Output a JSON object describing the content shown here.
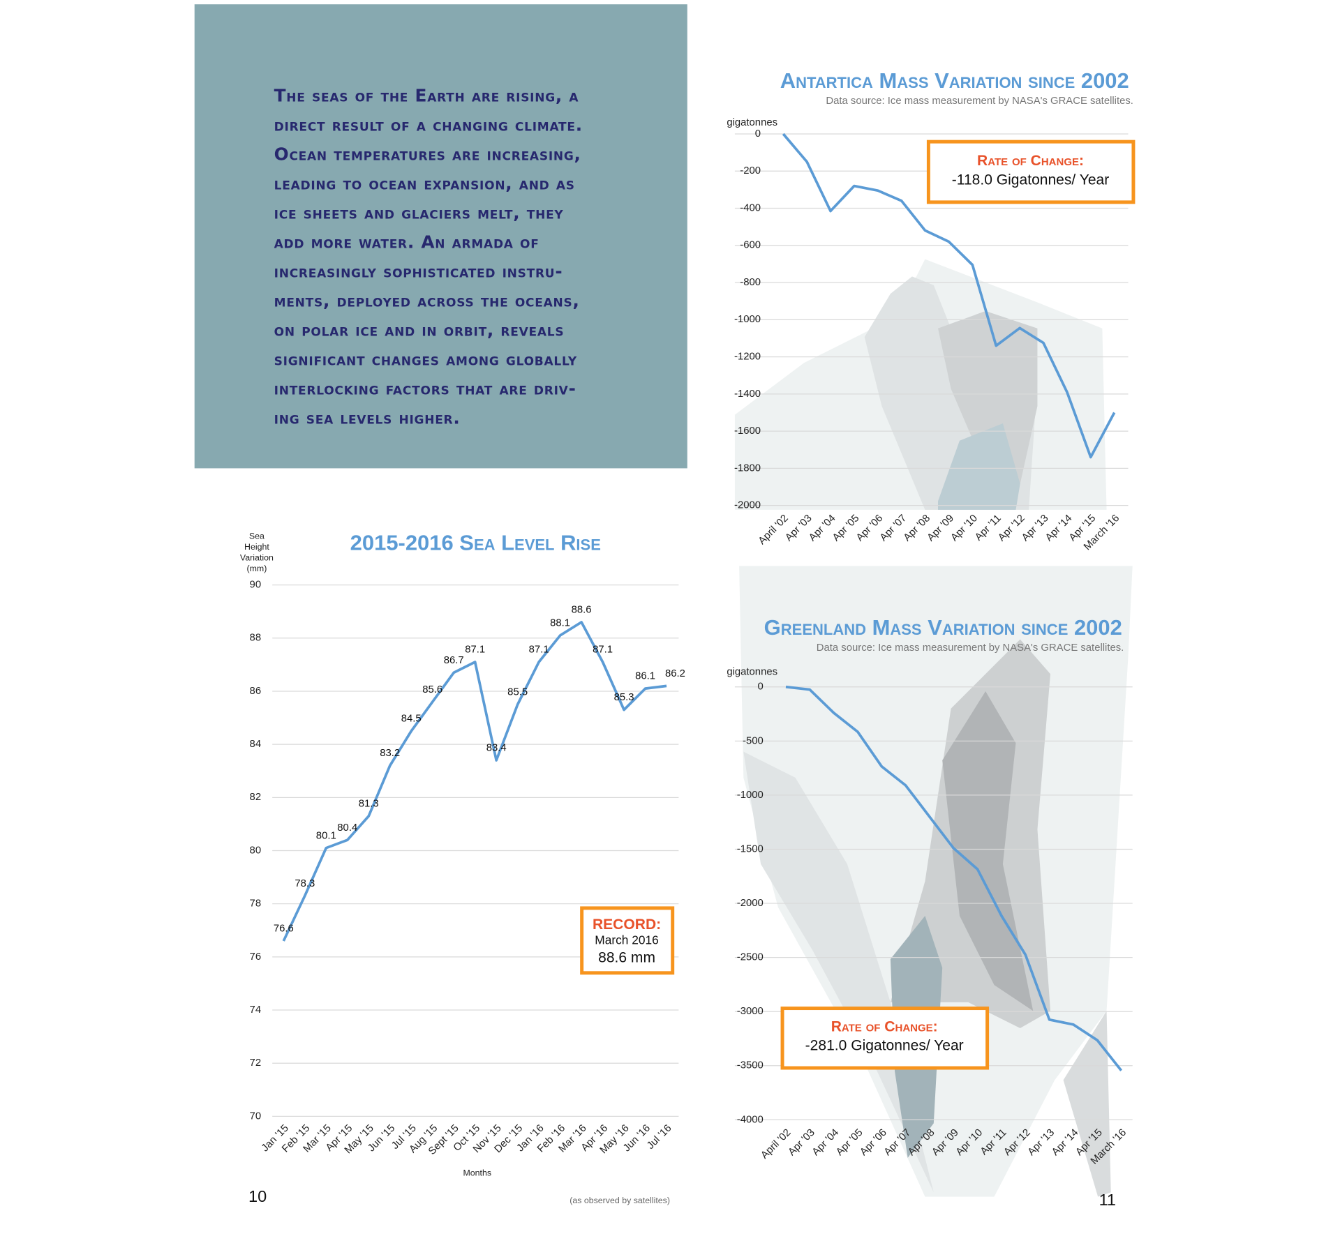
{
  "text_block": {
    "lines": [
      "The seas of the Earth are rising, a",
      "direct result of a changing climate.",
      "Ocean temperatures are increasing,",
      "leading to ocean expansion, and as",
      "ice sheets and glaciers melt, they",
      "add more water. An armada of",
      "increasingly sophisticated instru-",
      "ments, deployed across the oceans,",
      "on polar ice and in orbit, reveals",
      "significant changes among globally",
      "interlocking factors that are driv-",
      "ing sea levels higher."
    ]
  },
  "page_numbers": {
    "left": "10",
    "right": "11"
  },
  "footnote": "(as observed by satellites)",
  "chart_data": [
    {
      "type": "line",
      "title": "2015-2016 Sea Level Rise",
      "y_label": [
        "Sea",
        "Height",
        "Variation",
        "(mm)"
      ],
      "x_label": "Months",
      "categories": [
        "Jan '15",
        "Feb '15",
        "Mar '15",
        "Apr '15",
        "May '15",
        "Jun '15",
        "Jul '15",
        "Aug '15",
        "Sept '15",
        "Oct '15",
        "Nov '15",
        "Dec '15",
        "Jan '16",
        "Feb '16",
        "Mar '16",
        "Apr '16",
        "May '16",
        "Jun '16",
        "Jul '16"
      ],
      "values": [
        76.6,
        78.3,
        80.1,
        80.4,
        81.3,
        83.2,
        84.5,
        85.6,
        86.7,
        87.1,
        83.4,
        85.5,
        87.1,
        88.1,
        88.6,
        87.1,
        85.3,
        86.1,
        86.2
      ],
      "color": "#5b9bd5",
      "ylim": [
        70,
        90
      ],
      "yticks": [
        70,
        72,
        74,
        76,
        78,
        80,
        82,
        84,
        86,
        88,
        90
      ],
      "grid": true,
      "annotation": {
        "title": "RECORD:",
        "lines": [
          "March 2016",
          "88.6 mm"
        ]
      }
    },
    {
      "type": "line",
      "title": "Antartica Mass Variation since 2002",
      "subtitle": "Data source: Ice mass measurement by NASA's GRACE satellites.",
      "y_label": "gigatonnes",
      "categories": [
        "April '02",
        "Apr '03",
        "Apr '04",
        "Apr '05",
        "Apr '06",
        "Apr '07",
        "Apr '08",
        "Apr '09",
        "Apr '10",
        "Apr '11",
        "Apr '12",
        "Apr '13",
        "Apr '14",
        "Apr '15",
        "March '16"
      ],
      "values": [
        0,
        -150,
        -415,
        -280,
        -305,
        -360,
        -520,
        -580,
        -705,
        -1140,
        -1045,
        -1125,
        -1390,
        -1740,
        -1500
      ],
      "color": "#5b9bd5",
      "ylim": [
        -2000,
        0
      ],
      "yticks": [
        0,
        -200,
        -400,
        -600,
        -800,
        -1000,
        -1200,
        -1400,
        -1600,
        -1800,
        -2000
      ],
      "grid": true,
      "annotation": {
        "title": "Rate of Change:",
        "lines": [
          "-118.0 Gigatonnes/ Year"
        ]
      }
    },
    {
      "type": "line",
      "title": "Greenland Mass Variation since 2002",
      "subtitle": "Data source: Ice mass measurement by NASA's GRACE satellites.",
      "y_label": "gigatonnes",
      "categories": [
        "April '02",
        "Apr '03",
        "Apr '04",
        "Apr '05",
        "Apr '06",
        "Apr '07",
        "Apr '08",
        "Apr '09",
        "Apr '10",
        "Apr '11",
        "Apr '12",
        "Apr '13",
        "Apr '14",
        "Apr '15",
        "March '16"
      ],
      "values": [
        0,
        -25,
        -240,
        -415,
        -735,
        -910,
        -1200,
        -1490,
        -1685,
        -2115,
        -2475,
        -3075,
        -3120,
        -3265,
        -3545
      ],
      "color": "#5b9bd5",
      "ylim": [
        -4000,
        0
      ],
      "yticks": [
        0,
        -500,
        -1000,
        -1500,
        -2000,
        -2500,
        -3000,
        -3500,
        -4000
      ],
      "grid": true,
      "annotation": {
        "title": "Rate of Change:",
        "lines": [
          "-281.0 Gigatonnes/ Year"
        ]
      }
    }
  ]
}
